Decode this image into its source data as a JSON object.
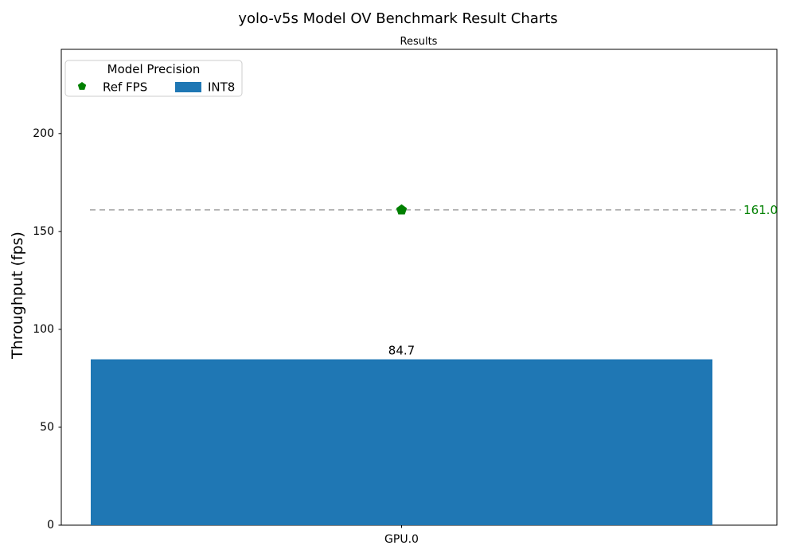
{
  "figure": {
    "suptitle": "yolo-v5s Model OV Benchmark Result Charts",
    "axes_title": "Results",
    "ylabel": "Throughput (fps)"
  },
  "legend": {
    "title": "Model Precision",
    "entries": [
      {
        "label": "Ref FPS",
        "marker": "pentagon",
        "color": "#008000"
      },
      {
        "label": "INT8",
        "marker": "rect",
        "color": "#1f77b4"
      }
    ]
  },
  "chart_data": {
    "type": "bar",
    "title": "Results",
    "suptitle": "yolo-v5s Model OV Benchmark Result Charts",
    "xlabel": "",
    "ylabel": "Throughput (fps)",
    "categories": [
      "GPU.0"
    ],
    "series": [
      {
        "name": "INT8",
        "type": "bar",
        "values": [
          84.7
        ],
        "data_labels": [
          "84.7"
        ],
        "color": "#1f77b4"
      },
      {
        "name": "Ref FPS",
        "type": "reference-line",
        "values": [
          161.0
        ],
        "data_labels": [
          "161.0"
        ],
        "marker": "pentagon",
        "marker_color": "#008000",
        "label_color": "#008000",
        "line_style": "dashed",
        "line_color": "#999999"
      }
    ],
    "yticks": [
      0,
      50,
      100,
      150,
      200
    ],
    "ylim": [
      0,
      243
    ],
    "grid": false,
    "legend_title": "Model Precision",
    "legend_position": "upper left"
  },
  "colors": {
    "bar_blue": "#1f77b4",
    "ref_green": "#008000",
    "dash_gray": "#999999",
    "legend_border": "#cccccc",
    "spine": "#000000"
  }
}
